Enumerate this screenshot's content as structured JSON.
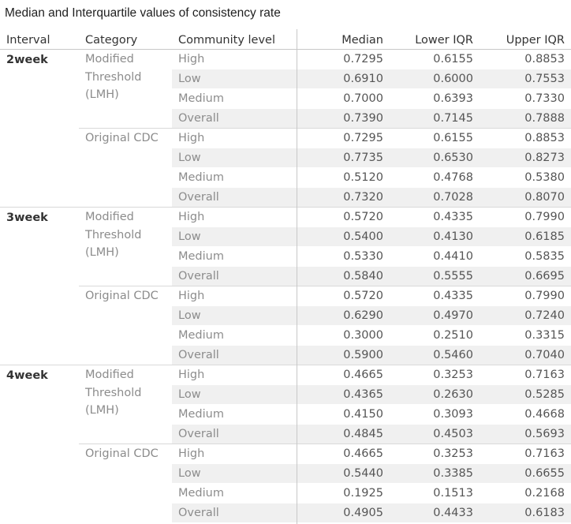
{
  "title": "Median and Interquartile values of consistency rate",
  "headers": [
    "Interval",
    "Category",
    "Community level",
    "Median",
    "Lower IQR",
    "Upper IQR"
  ],
  "chart_data": {
    "type": "table",
    "title": "Median and Interquartile values of consistency rate",
    "columns": [
      "Interval",
      "Category",
      "Community level",
      "Median",
      "Lower IQR",
      "Upper IQR"
    ],
    "groups": [
      {
        "interval": "2week",
        "categories": [
          {
            "lines": [
              "Modified",
              "Threshold",
              "(LMH)"
            ],
            "rows": [
              [
                "High",
                "0.7295",
                "0.6155",
                "0.8853"
              ],
              [
                "Low",
                "0.6910",
                "0.6000",
                "0.7553"
              ],
              [
                "Medium",
                "0.7000",
                "0.6393",
                "0.7330"
              ],
              [
                "Overall",
                "0.7390",
                "0.7145",
                "0.7888"
              ]
            ]
          },
          {
            "lines": [
              "Original CDC"
            ],
            "rows": [
              [
                "High",
                "0.7295",
                "0.6155",
                "0.8853"
              ],
              [
                "Low",
                "0.7735",
                "0.6530",
                "0.8273"
              ],
              [
                "Medium",
                "0.5120",
                "0.4768",
                "0.5380"
              ],
              [
                "Overall",
                "0.7320",
                "0.7028",
                "0.8070"
              ]
            ]
          }
        ]
      },
      {
        "interval": "3week",
        "categories": [
          {
            "lines": [
              "Modified",
              "Threshold",
              "(LMH)"
            ],
            "rows": [
              [
                "High",
                "0.5720",
                "0.4335",
                "0.7990"
              ],
              [
                "Low",
                "0.5400",
                "0.4130",
                "0.6185"
              ],
              [
                "Medium",
                "0.5330",
                "0.4410",
                "0.5835"
              ],
              [
                "Overall",
                "0.5840",
                "0.5555",
                "0.6695"
              ]
            ]
          },
          {
            "lines": [
              "Original CDC"
            ],
            "rows": [
              [
                "High",
                "0.5720",
                "0.4335",
                "0.7990"
              ],
              [
                "Low",
                "0.6290",
                "0.4970",
                "0.7240"
              ],
              [
                "Medium",
                "0.3000",
                "0.2510",
                "0.3315"
              ],
              [
                "Overall",
                "0.5900",
                "0.5460",
                "0.7040"
              ]
            ]
          }
        ]
      },
      {
        "interval": "4week",
        "categories": [
          {
            "lines": [
              "Modified",
              "Threshold",
              "(LMH)"
            ],
            "rows": [
              [
                "High",
                "0.4665",
                "0.3253",
                "0.7163"
              ],
              [
                "Low",
                "0.4365",
                "0.2630",
                "0.5285"
              ],
              [
                "Medium",
                "0.4150",
                "0.3093",
                "0.4668"
              ],
              [
                "Overall",
                "0.4845",
                "0.4503",
                "0.5693"
              ]
            ]
          },
          {
            "lines": [
              "Original CDC"
            ],
            "rows": [
              [
                "High",
                "0.4665",
                "0.3253",
                "0.7163"
              ],
              [
                "Low",
                "0.5440",
                "0.3385",
                "0.6655"
              ],
              [
                "Medium",
                "0.1925",
                "0.1513",
                "0.2168"
              ],
              [
                "Overall",
                "0.4905",
                "0.4433",
                "0.6183"
              ]
            ]
          }
        ]
      }
    ]
  }
}
